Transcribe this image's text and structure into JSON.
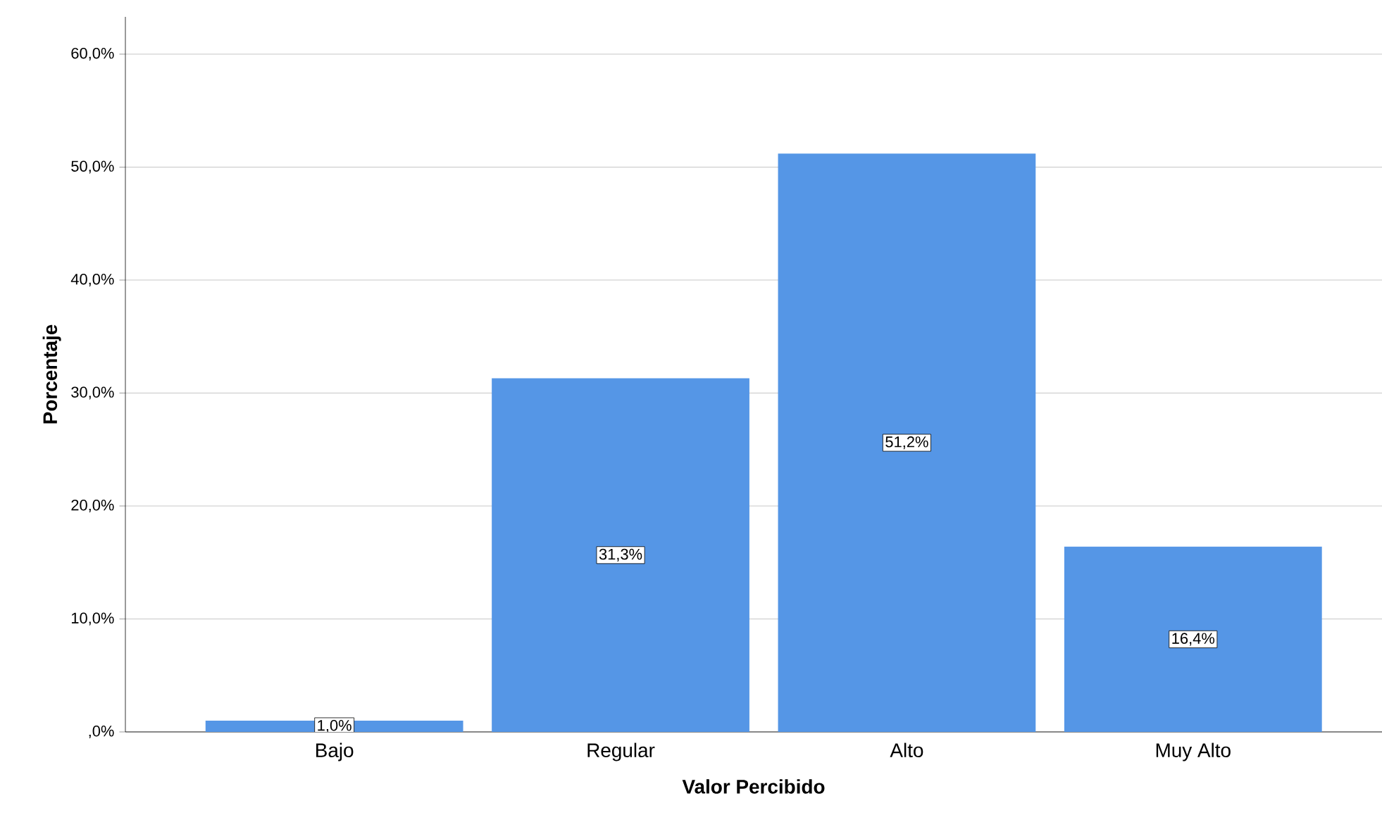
{
  "chart_data": {
    "type": "bar",
    "xlabel": "Valor Percibido",
    "ylabel": "Porcentaje",
    "categories": [
      "Bajo",
      "Regular",
      "Alto",
      "Muy Alto"
    ],
    "values": [
      1.0,
      31.3,
      51.2,
      16.4
    ],
    "value_labels": [
      "1,0%",
      "31,3%",
      "51,2%",
      "16,4%"
    ],
    "color": "#5596e6",
    "ylim": [
      0,
      63.3
    ],
    "yticks": [
      {
        "value": 0,
        "label": ",0%"
      },
      {
        "value": 10,
        "label": "10,0%"
      },
      {
        "value": 20,
        "label": "20,0%"
      },
      {
        "value": 30,
        "label": "30,0%"
      },
      {
        "value": 40,
        "label": "40,0%"
      },
      {
        "value": 50,
        "label": "50,0%"
      },
      {
        "value": 60,
        "label": "60,0%"
      }
    ],
    "grid": "y"
  }
}
